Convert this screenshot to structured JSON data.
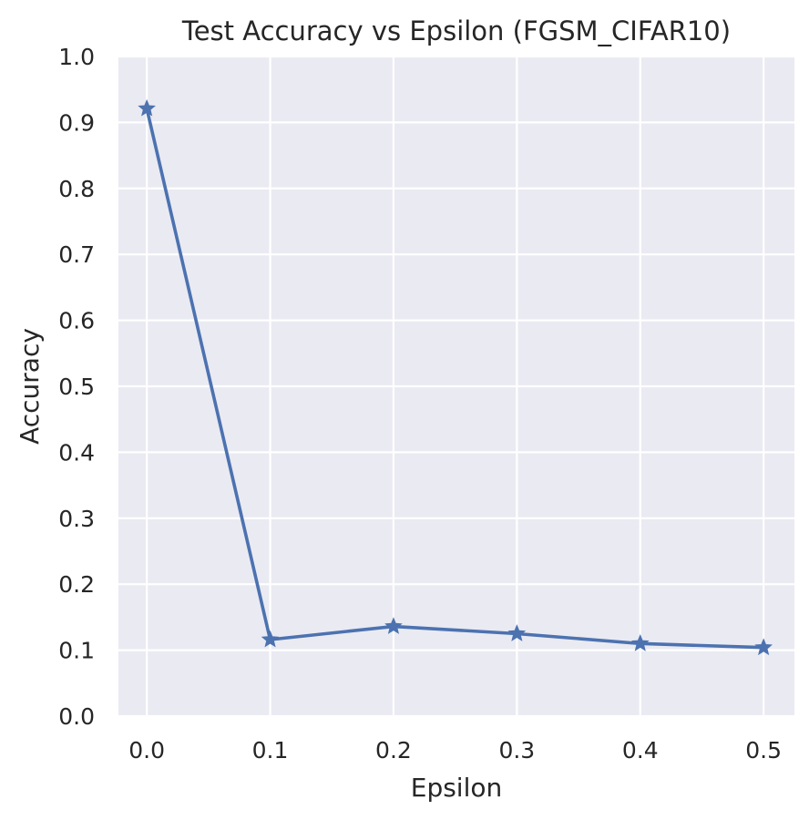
{
  "chart_data": {
    "type": "line",
    "title": "Test Accuracy vs Epsilon (FGSM_CIFAR10)",
    "xlabel": "Epsilon",
    "ylabel": "Accuracy",
    "x": [
      0.0,
      0.1,
      0.2,
      0.3,
      0.4,
      0.5
    ],
    "x_tick_labels": [
      "0.0",
      "0.1",
      "0.2",
      "0.3",
      "0.4",
      "0.5"
    ],
    "y_tick_labels": [
      "0.0",
      "0.1",
      "0.2",
      "0.3",
      "0.4",
      "0.5",
      "0.6",
      "0.7",
      "0.8",
      "0.9",
      "1.0"
    ],
    "series": [
      {
        "values": [
          0.921,
          0.116,
          0.136,
          0.125,
          0.11,
          0.104
        ],
        "color": "#4c72b0",
        "marker": "star"
      }
    ],
    "xlim": [
      -0.023,
      0.525
    ],
    "ylim": [
      0.0,
      1.0
    ],
    "grid": true,
    "background": "#eaeaf2",
    "grid_color": "#ffffff"
  }
}
